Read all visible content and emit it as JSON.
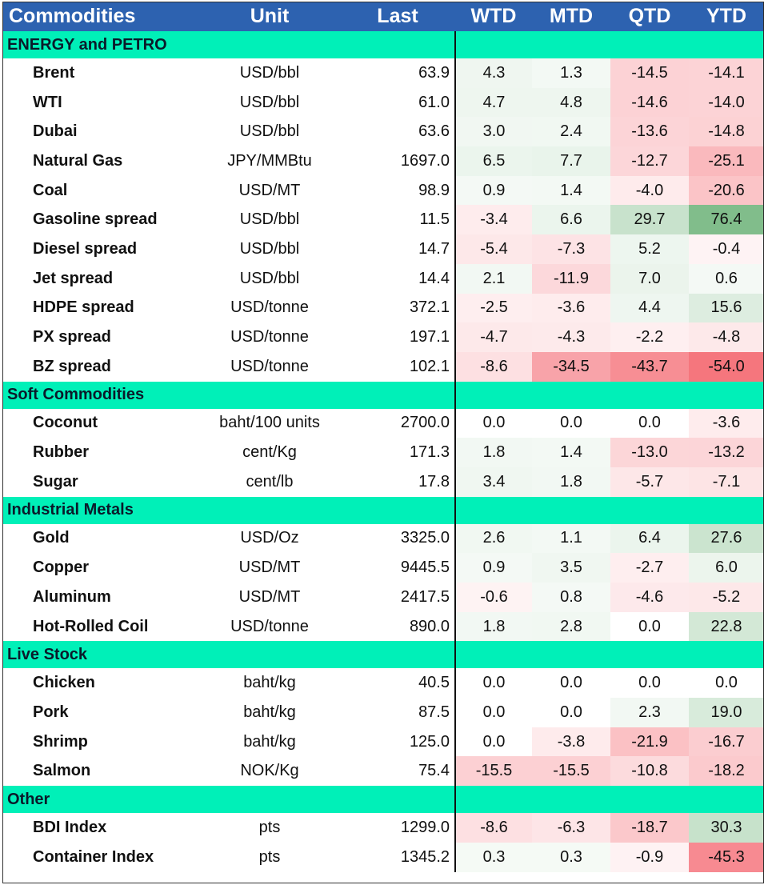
{
  "header": [
    "Commodities",
    "Unit",
    "Last",
    "WTD",
    "MTD",
    "QTD",
    "YTD"
  ],
  "sections": [
    {
      "name": "ENERGY and PETRO",
      "rows": [
        {
          "name": "Brent",
          "unit": "USD/bbl",
          "last": "63.9",
          "values": [
            "4.3",
            "1.3",
            "-14.5",
            "-14.1"
          ]
        },
        {
          "name": "WTI",
          "unit": "USD/bbl",
          "last": "61.0",
          "values": [
            "4.7",
            "4.8",
            "-14.6",
            "-14.0"
          ]
        },
        {
          "name": "Dubai",
          "unit": "USD/bbl",
          "last": "63.6",
          "values": [
            "3.0",
            "2.4",
            "-13.6",
            "-14.8"
          ]
        },
        {
          "name": "Natural Gas",
          "unit": "JPY/MMBtu",
          "last": "1697.0",
          "values": [
            "6.5",
            "7.7",
            "-12.7",
            "-25.1"
          ]
        },
        {
          "name": "Coal",
          "unit": "USD/MT",
          "last": "98.9",
          "values": [
            "0.9",
            "1.4",
            "-4.0",
            "-20.6"
          ]
        },
        {
          "name": "Gasoline spread",
          "unit": "USD/bbl",
          "last": "11.5",
          "values": [
            "-3.4",
            "6.6",
            "29.7",
            "76.4"
          ]
        },
        {
          "name": "Diesel spread",
          "unit": "USD/bbl",
          "last": "14.7",
          "values": [
            "-5.4",
            "-7.3",
            "5.2",
            "-0.4"
          ]
        },
        {
          "name": "Jet spread",
          "unit": "USD/bbl",
          "last": "14.4",
          "values": [
            "2.1",
            "-11.9",
            "7.0",
            "0.6"
          ]
        },
        {
          "name": "HDPE spread",
          "unit": "USD/tonne",
          "last": "372.1",
          "values": [
            "-2.5",
            "-3.6",
            "4.4",
            "15.6"
          ]
        },
        {
          "name": "PX spread",
          "unit": "USD/tonne",
          "last": "197.1",
          "values": [
            "-4.7",
            "-4.3",
            "-2.2",
            "-4.8"
          ]
        },
        {
          "name": "BZ spread",
          "unit": "USD/tonne",
          "last": "102.1",
          "values": [
            "-8.6",
            "-34.5",
            "-43.7",
            "-54.0"
          ]
        }
      ]
    },
    {
      "name": "Soft Commodities",
      "rows": [
        {
          "name": "Coconut",
          "unit": "baht/100 units",
          "last": "2700.0",
          "values": [
            "0.0",
            "0.0",
            "0.0",
            "-3.6"
          ]
        },
        {
          "name": "Rubber",
          "unit": "cent/Kg",
          "last": "171.3",
          "values": [
            "1.8",
            "1.4",
            "-13.0",
            "-13.2"
          ]
        },
        {
          "name": "Sugar",
          "unit": "cent/lb",
          "last": "17.8",
          "values": [
            "3.4",
            "1.8",
            "-5.7",
            "-7.1"
          ]
        }
      ]
    },
    {
      "name": "Industrial Metals",
      "rows": [
        {
          "name": "Gold",
          "unit": "USD/Oz",
          "last": "3325.0",
          "values": [
            "2.6",
            "1.1",
            "6.4",
            "27.6"
          ]
        },
        {
          "name": "Copper",
          "unit": "USD/MT",
          "last": "9445.5",
          "values": [
            "0.9",
            "3.5",
            "-2.7",
            "6.0"
          ]
        },
        {
          "name": "Aluminum",
          "unit": "USD/MT",
          "last": "2417.5",
          "values": [
            "-0.6",
            "0.8",
            "-4.6",
            "-5.2"
          ]
        },
        {
          "name": "Hot-Rolled Coil",
          "unit": "USD/tonne",
          "last": "890.0",
          "values": [
            "1.8",
            "2.8",
            "0.0",
            "22.8"
          ]
        }
      ]
    },
    {
      "name": "Live Stock",
      "rows": [
        {
          "name": "Chicken",
          "unit": "baht/kg",
          "last": "40.5",
          "values": [
            "0.0",
            "0.0",
            "0.0",
            "0.0"
          ]
        },
        {
          "name": "Pork",
          "unit": "baht/kg",
          "last": "87.5",
          "values": [
            "0.0",
            "0.0",
            "2.3",
            "19.0"
          ]
        },
        {
          "name": "Shrimp",
          "unit": "baht/kg",
          "last": "125.0",
          "values": [
            "0.0",
            "-3.8",
            "-21.9",
            "-16.7"
          ]
        },
        {
          "name": "Salmon",
          "unit": "NOK/Kg",
          "last": "75.4",
          "values": [
            "-15.5",
            "-15.5",
            "-10.8",
            "-18.2"
          ]
        }
      ]
    },
    {
      "name": "Other",
      "rows": [
        {
          "name": "BDI Index",
          "unit": "pts",
          "last": "1299.0",
          "values": [
            "-8.6",
            "-6.3",
            "-18.7",
            "30.3"
          ]
        },
        {
          "name": "Container Index",
          "unit": "pts",
          "last": "1345.2",
          "values": [
            "0.3",
            "0.3",
            "-0.9",
            "-45.3"
          ]
        }
      ]
    }
  ],
  "colors": {
    "header_bg": "#2d62b0",
    "section_bg": "#00f0b8",
    "positive": "#5aa866",
    "negative": "#f24b55"
  }
}
